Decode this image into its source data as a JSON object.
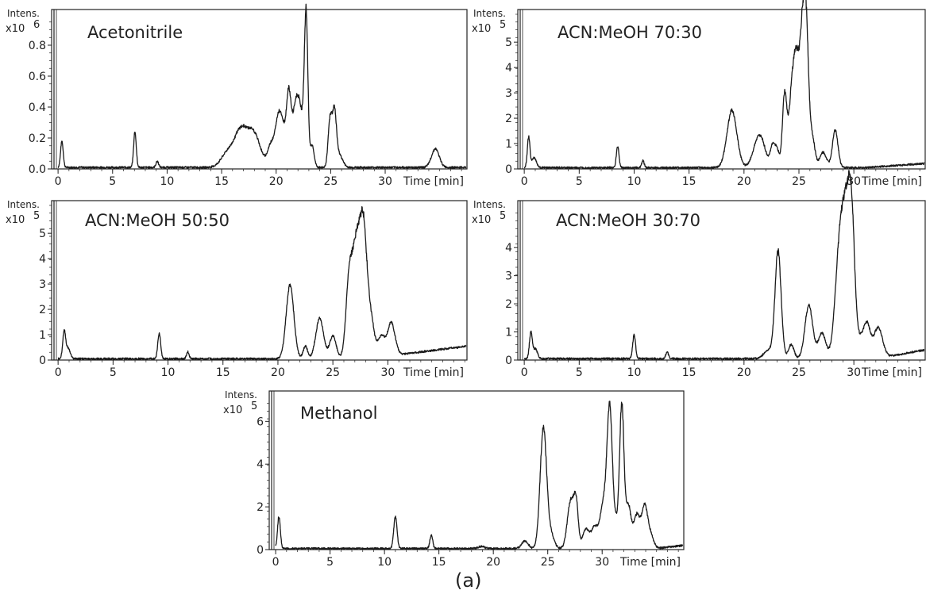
{
  "figure": {
    "caption": "(a)"
  },
  "colors": {
    "trace": "#1a1a1a",
    "axis": "#222222"
  },
  "chart_data": [
    {
      "type": "line",
      "title": "Acetonitrile",
      "ylabel": "Intens.",
      "y_scale_label": "x10",
      "y_scale_exp": "6",
      "xlabel": "Time [min]",
      "xlim": [
        -0.3,
        37.5
      ],
      "ylim": [
        0,
        1.0
      ],
      "xticks": [
        "0",
        "5",
        "10",
        "15",
        "20",
        "25",
        "30"
      ],
      "yticks": [
        "0.0",
        "0.2",
        "0.4",
        "0.6",
        "0.8"
      ],
      "baseline": 0.01,
      "peaks": [
        [
          0.35,
          0.17,
          0.12
        ],
        [
          7.05,
          0.23,
          0.12
        ],
        [
          9.1,
          0.04,
          0.12
        ],
        [
          15.6,
          0.1,
          0.6
        ],
        [
          16.6,
          0.15,
          0.5
        ],
        [
          17.4,
          0.18,
          0.6
        ],
        [
          18.2,
          0.13,
          0.5
        ],
        [
          19.6,
          0.16,
          0.35
        ],
        [
          20.2,
          0.26,
          0.25
        ],
        [
          20.6,
          0.22,
          0.25
        ],
        [
          21.15,
          0.46,
          0.22
        ],
        [
          21.8,
          0.37,
          0.3
        ],
        [
          22.3,
          0.28,
          0.3
        ],
        [
          22.75,
          0.93,
          0.16
        ],
        [
          23.3,
          0.14,
          0.18
        ],
        [
          24.95,
          0.31,
          0.18
        ],
        [
          25.35,
          0.34,
          0.18
        ],
        [
          25.8,
          0.08,
          0.3
        ],
        [
          34.6,
          0.12,
          0.35
        ]
      ]
    },
    {
      "type": "line",
      "title": "ACN:MeOH   70:30",
      "ylabel": "Intens.",
      "y_scale_label": "x10",
      "y_scale_exp": "5",
      "xlabel": "Time [min]",
      "xlim": [
        -0.3,
        37.0
      ],
      "ylim": [
        0,
        6.1
      ],
      "xticks": [
        "0",
        "5",
        "10",
        "15",
        "20",
        "25",
        "30"
      ],
      "yticks": [
        "0",
        "1",
        "2",
        "3",
        "4",
        "5"
      ],
      "baseline": 0.05,
      "baseline_drift": [
        31,
        0.18
      ],
      "peaks": [
        [
          0.4,
          1.2,
          0.12
        ],
        [
          0.9,
          0.4,
          0.2
        ],
        [
          8.5,
          0.85,
          0.12
        ],
        [
          10.8,
          0.28,
          0.12
        ],
        [
          18.9,
          2.25,
          0.45
        ],
        [
          21.4,
          1.3,
          0.5
        ],
        [
          22.6,
          0.8,
          0.2
        ],
        [
          23.0,
          0.7,
          0.2
        ],
        [
          23.7,
          2.9,
          0.2
        ],
        [
          24.3,
          2.2,
          0.25
        ],
        [
          24.8,
          4.3,
          0.3
        ],
        [
          25.3,
          3.6,
          0.2
        ],
        [
          25.65,
          5.6,
          0.22
        ],
        [
          26.2,
          1.2,
          0.25
        ],
        [
          27.2,
          0.6,
          0.3
        ],
        [
          28.3,
          1.5,
          0.25
        ]
      ]
    },
    {
      "type": "line",
      "title": "ACN:MeOH   50:50",
      "ylabel": "Intens.",
      "y_scale_label": "x10",
      "y_scale_exp": "5",
      "xlabel": "Time [min]",
      "xlim": [
        -0.3,
        37.2
      ],
      "ylim": [
        0,
        6.1
      ],
      "xticks": [
        "0",
        "5",
        "10",
        "15",
        "20",
        "25",
        "30"
      ],
      "yticks": [
        "0",
        "1",
        "2",
        "3",
        "4",
        "5"
      ],
      "baseline": 0.05,
      "baseline_drift": [
        28,
        0.5
      ],
      "peaks": [
        [
          0.55,
          1.05,
          0.13
        ],
        [
          0.9,
          0.4,
          0.2
        ],
        [
          9.2,
          1.0,
          0.13
        ],
        [
          11.8,
          0.27,
          0.12
        ],
        [
          21.1,
          2.9,
          0.35
        ],
        [
          22.5,
          0.5,
          0.2
        ],
        [
          23.8,
          1.6,
          0.35
        ],
        [
          25.0,
          0.9,
          0.3
        ],
        [
          26.5,
          3.3,
          0.3
        ],
        [
          27.1,
          3.6,
          0.3
        ],
        [
          27.75,
          5.4,
          0.35
        ],
        [
          28.5,
          1.3,
          0.3
        ],
        [
          29.4,
          0.8,
          0.3
        ],
        [
          30.3,
          1.3,
          0.35
        ]
      ]
    },
    {
      "type": "line",
      "title": "ACN:MeOH 30:70",
      "ylabel": "Intens.",
      "y_scale_label": "x10",
      "y_scale_exp": "5",
      "xlabel": "Time [min]",
      "xlim": [
        -0.3,
        37.0
      ],
      "ylim": [
        0,
        5.5
      ],
      "xticks": [
        "0",
        "5",
        "10",
        "15",
        "20",
        "25",
        "30"
      ],
      "yticks": [
        "0",
        "1",
        "2",
        "3",
        "4"
      ],
      "baseline": 0.05,
      "baseline_drift": [
        32,
        0.35
      ],
      "peaks": [
        [
          0.6,
          0.9,
          0.13
        ],
        [
          1.0,
          0.35,
          0.2
        ],
        [
          10.0,
          0.85,
          0.13
        ],
        [
          13.0,
          0.25,
          0.12
        ],
        [
          22.2,
          0.3,
          0.4
        ],
        [
          23.1,
          3.8,
          0.28
        ],
        [
          24.3,
          0.5,
          0.25
        ],
        [
          25.9,
          1.9,
          0.35
        ],
        [
          27.1,
          0.9,
          0.35
        ],
        [
          28.7,
          3.8,
          0.4
        ],
        [
          29.3,
          3.8,
          0.35
        ],
        [
          29.8,
          4.5,
          0.3
        ],
        [
          30.6,
          0.6,
          0.3
        ],
        [
          31.2,
          1.2,
          0.3
        ],
        [
          32.2,
          1.1,
          0.4
        ]
      ]
    },
    {
      "type": "line",
      "title": "Methanol",
      "ylabel": "Intens.",
      "y_scale_label": "x10",
      "y_scale_exp": "5",
      "xlabel": "Time [min]",
      "xlim": [
        -0.3,
        37.5
      ],
      "ylim": [
        0,
        7.2
      ],
      "xticks": [
        "0",
        "5",
        "10",
        "15",
        "20",
        "25",
        "30"
      ],
      "yticks": [
        "0",
        "2",
        "4",
        "6"
      ],
      "baseline": 0.05,
      "baseline_drift": [
        35,
        0.15
      ],
      "peaks": [
        [
          0.3,
          1.5,
          0.13
        ],
        [
          11.0,
          1.5,
          0.15
        ],
        [
          14.3,
          0.6,
          0.13
        ],
        [
          18.9,
          0.1,
          0.3
        ],
        [
          22.9,
          0.35,
          0.3
        ],
        [
          24.6,
          5.6,
          0.3
        ],
        [
          25.3,
          0.6,
          0.3
        ],
        [
          27.1,
          2.2,
          0.3
        ],
        [
          27.6,
          2.0,
          0.2
        ],
        [
          28.5,
          0.9,
          0.3
        ],
        [
          29.3,
          1.0,
          0.3
        ],
        [
          30.1,
          2.0,
          0.3
        ],
        [
          30.7,
          6.5,
          0.25
        ],
        [
          31.3,
          1.0,
          0.2
        ],
        [
          31.8,
          6.7,
          0.2
        ],
        [
          32.4,
          2.0,
          0.25
        ],
        [
          33.2,
          1.6,
          0.3
        ],
        [
          33.9,
          1.8,
          0.25
        ],
        [
          34.4,
          0.7,
          0.3
        ]
      ]
    }
  ]
}
